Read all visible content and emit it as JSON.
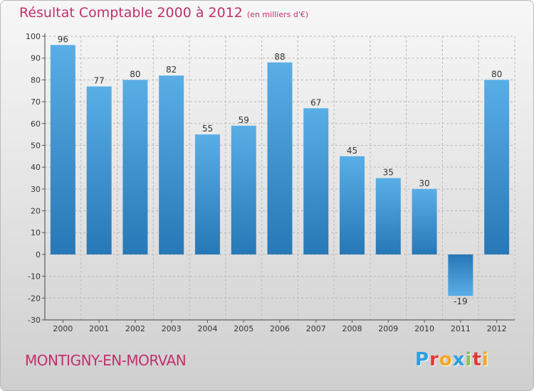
{
  "header": {
    "title": "Résultat Comptable 2000 à 2012",
    "subtitle": "(en milliers d'€)"
  },
  "footer": {
    "commune": "MONTIGNY-EN-MORVAN",
    "logo_letters": [
      "P",
      "r",
      "o",
      "x",
      "i",
      "t",
      "i"
    ],
    "logo_colors": [
      "#2d9ee0",
      "#e23a3a",
      "#f5a623",
      "#2d9ee0",
      "#8bc34a",
      "#e23a3a",
      "#f5a623"
    ]
  },
  "chart_data": {
    "type": "bar",
    "title": "Résultat Comptable 2000 à 2012",
    "subtitle": "(en milliers d'€)",
    "categories": [
      "2000",
      "2001",
      "2002",
      "2003",
      "2004",
      "2005",
      "2006",
      "2007",
      "2008",
      "2009",
      "2010",
      "2011",
      "2012"
    ],
    "values": [
      96,
      77,
      80,
      82,
      55,
      59,
      88,
      67,
      45,
      35,
      30,
      -19,
      80
    ],
    "data_labels": [
      "96",
      "77",
      "80",
      "82",
      "55",
      "59",
      "88",
      "67",
      "45",
      "35",
      "30",
      "-19",
      "80"
    ],
    "ylim": [
      -30,
      100
    ],
    "yticks": [
      100,
      90,
      80,
      70,
      60,
      50,
      40,
      30,
      20,
      10,
      0,
      -10,
      -20,
      -30
    ],
    "ytick_labels": [
      "100",
      "90",
      "80",
      "70",
      "60",
      "50",
      "40",
      "30",
      "20",
      "10",
      "0",
      "-10",
      "-20",
      "-30"
    ],
    "grid": true,
    "colors": {
      "bar_light": "#5aaee6",
      "bar_dark": "#2678b6",
      "grid": "#b8b8b8"
    }
  }
}
